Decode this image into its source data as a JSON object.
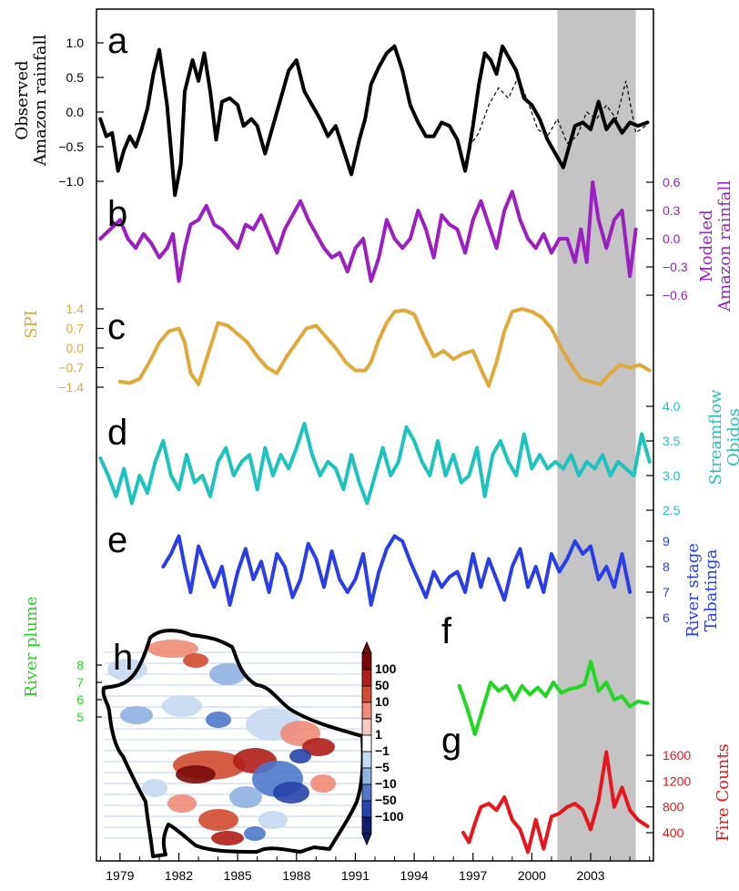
{
  "colors": {
    "a": "#000000",
    "b": "#9b1fc1",
    "c": "#e0a93a",
    "d": "#1ec3c0",
    "e": "#2a3ee6",
    "f": "#22d622",
    "g": "#e8161c",
    "shade": "#c4c4c4"
  },
  "x_axis": {
    "ticks": [
      "1979",
      "1982",
      "1985",
      "1988",
      "1991",
      "1994",
      "1997",
      "2000",
      "2003"
    ]
  },
  "chart_data": [
    {
      "panel": "a",
      "type": "line",
      "ylabel": [
        "Observed",
        "Amazon rainfall"
      ],
      "ticks": [
        "1.0",
        "0.5",
        "0.0",
        "−0.5",
        "−1.0"
      ],
      "x": [
        1978.0,
        1978.3,
        1978.6,
        1978.9,
        1979.2,
        1979.5,
        1979.8,
        1980.1,
        1980.4,
        1980.7,
        1981.0,
        1981.4,
        1981.8,
        1982.1,
        1982.3,
        1982.7,
        1983.0,
        1983.3,
        1983.6,
        1983.9,
        1984.2,
        1984.6,
        1985.0,
        1985.3,
        1985.7,
        1986.0,
        1986.4,
        1986.8,
        1987.2,
        1987.6,
        1988.0,
        1988.4,
        1988.8,
        1989.2,
        1989.6,
        1990.0,
        1990.4,
        1990.8,
        1991.2,
        1991.5,
        1991.8,
        1992.2,
        1992.6,
        1993.0,
        1993.4,
        1993.8,
        1994.2,
        1994.6,
        1995.0,
        1995.4,
        1995.8,
        1996.2,
        1996.6,
        1996.8,
        1997.0,
        1997.3,
        1997.6,
        1997.9,
        1998.2,
        1998.5,
        1998.9,
        1999.2,
        1999.6,
        2000.0,
        2000.4,
        2000.8,
        2001.2,
        2001.6,
        2001.9,
        2002.2,
        2002.6,
        2003.0,
        2003.4,
        2003.8,
        2004.2,
        2004.6,
        2005.0,
        2005.4,
        2005.9
      ],
      "values": [
        -0.1,
        -0.35,
        -0.3,
        -0.85,
        -0.55,
        -0.35,
        -0.5,
        -0.25,
        0.05,
        0.55,
        0.9,
        0.1,
        -1.2,
        -0.75,
        0.3,
        0.75,
        0.45,
        0.85,
        0.3,
        -0.4,
        0.15,
        0.2,
        0.1,
        -0.2,
        -0.1,
        -0.2,
        -0.6,
        -0.2,
        0.2,
        0.6,
        0.75,
        0.3,
        0.1,
        -0.1,
        -0.35,
        -0.2,
        -0.55,
        -0.9,
        -0.4,
        -0.1,
        0.4,
        0.65,
        0.85,
        0.95,
        0.6,
        0.1,
        -0.15,
        -0.35,
        -0.35,
        -0.15,
        -0.2,
        -0.4,
        -0.85,
        -0.55,
        -0.2,
        0.4,
        0.85,
        0.75,
        0.55,
        0.95,
        0.75,
        0.6,
        0.2,
        0.1,
        -0.1,
        -0.4,
        -0.6,
        -0.8,
        -0.5,
        -0.2,
        -0.15,
        -0.25,
        0.15,
        -0.25,
        -0.1,
        -0.3,
        -0.15,
        -0.2,
        -0.15
      ],
      "dashed_x": [
        1996.8,
        1997.3,
        1997.8,
        1998.3,
        1998.8,
        1999.3,
        1999.8,
        2000.3,
        2000.8,
        2001.3,
        2001.8,
        2002.3,
        2002.8,
        2003.3,
        2003.8,
        2004.3,
        2004.8,
        2005.3,
        2005.8
      ],
      "dashed_values": [
        -0.5,
        -0.3,
        0.1,
        0.35,
        0.2,
        0.5,
        0.15,
        -0.25,
        -0.35,
        -0.1,
        -0.45,
        -0.35,
        0.0,
        -0.1,
        0.1,
        -0.1,
        0.45,
        -0.3,
        -0.2
      ]
    },
    {
      "panel": "b",
      "type": "line",
      "ylabel": [
        "Modeled",
        "Amazon rainfall"
      ],
      "ticks": [
        "0.6",
        "0.3",
        "0.0",
        "−0.3",
        "−0.6"
      ],
      "x": [
        1978.0,
        1978.5,
        1979.0,
        1979.4,
        1979.8,
        1980.2,
        1980.6,
        1981.0,
        1981.4,
        1981.7,
        1982.0,
        1982.3,
        1982.6,
        1983.0,
        1983.4,
        1983.8,
        1984.2,
        1984.6,
        1985.0,
        1985.4,
        1985.8,
        1986.2,
        1986.6,
        1987.0,
        1987.4,
        1987.8,
        1988.2,
        1988.6,
        1989.0,
        1989.4,
        1989.8,
        1990.2,
        1990.6,
        1991.0,
        1991.4,
        1991.8,
        1992.2,
        1992.6,
        1993.0,
        1993.4,
        1993.8,
        1994.2,
        1994.6,
        1995.0,
        1995.4,
        1995.8,
        1996.2,
        1996.6,
        1997.0,
        1997.4,
        1997.8,
        1998.2,
        1998.6,
        1999.0,
        1999.4,
        1999.8,
        2000.2,
        2000.6,
        2001.0,
        2001.4,
        2001.8,
        2002.2,
        2002.5,
        2002.8,
        2003.1,
        2003.4,
        2003.8,
        2004.2,
        2004.6,
        2005.0,
        2005.3
      ],
      "values": [
        0.0,
        0.1,
        0.2,
        0.0,
        -0.1,
        0.05,
        -0.05,
        -0.2,
        -0.1,
        0.05,
        -0.45,
        -0.1,
        0.15,
        0.2,
        0.35,
        0.15,
        0.1,
        0.0,
        -0.1,
        0.15,
        0.1,
        0.25,
        0.05,
        -0.15,
        0.1,
        0.25,
        0.4,
        0.2,
        0.05,
        -0.1,
        -0.2,
        -0.15,
        -0.35,
        -0.1,
        0.0,
        -0.45,
        -0.2,
        0.2,
        0.0,
        -0.1,
        0.0,
        0.3,
        0.1,
        -0.2,
        0.25,
        0.15,
        0.1,
        -0.15,
        0.2,
        0.4,
        0.15,
        -0.1,
        0.3,
        0.5,
        0.2,
        0.0,
        -0.1,
        0.05,
        -0.15,
        0.0,
        0.0,
        -0.25,
        0.1,
        -0.25,
        0.6,
        0.2,
        -0.1,
        0.2,
        0.3,
        -0.4,
        0.1
      ]
    },
    {
      "panel": "c",
      "type": "line",
      "ylabel": [
        "SPI"
      ],
      "ticks": [
        "1.4",
        "0.7",
        "0.0",
        "−0.7",
        "−1.4"
      ],
      "x": [
        1979.0,
        1979.5,
        1980.0,
        1980.5,
        1981.0,
        1981.5,
        1982.0,
        1982.3,
        1982.6,
        1983.0,
        1983.5,
        1984.0,
        1984.5,
        1985.0,
        1985.5,
        1986.0,
        1986.5,
        1987.0,
        1987.5,
        1988.0,
        1988.5,
        1989.0,
        1989.5,
        1990.0,
        1990.5,
        1991.0,
        1991.5,
        1991.8,
        1992.2,
        1992.6,
        1993.0,
        1993.5,
        1994.0,
        1994.5,
        1995.0,
        1995.5,
        1996.0,
        1996.5,
        1997.0,
        1997.5,
        1997.8,
        1998.2,
        1998.6,
        1999.0,
        1999.5,
        2000.0,
        2000.5,
        2001.0,
        2001.5,
        2002.0,
        2002.5,
        2003.0,
        2003.5,
        2004.0,
        2004.5,
        2005.0,
        2005.5,
        2006.0
      ],
      "values": [
        -1.2,
        -1.25,
        -1.1,
        -0.5,
        0.2,
        0.6,
        0.7,
        0.2,
        -0.9,
        -1.3,
        -0.2,
        0.9,
        0.8,
        0.5,
        0.2,
        -0.3,
        -0.7,
        -0.9,
        -0.3,
        0.2,
        0.7,
        0.8,
        0.4,
        0.0,
        -0.5,
        -0.8,
        -0.8,
        -0.5,
        0.3,
        0.9,
        1.3,
        1.35,
        1.2,
        0.4,
        -0.3,
        -0.1,
        -0.4,
        -0.2,
        -0.1,
        -0.9,
        -1.35,
        -0.5,
        0.6,
        1.3,
        1.4,
        1.3,
        1.1,
        0.7,
        0.0,
        -0.6,
        -1.1,
        -1.2,
        -1.3,
        -0.9,
        -0.6,
        -0.7,
        -0.6,
        -0.8
      ]
    },
    {
      "panel": "d",
      "type": "line",
      "ylabel": [
        "Streamflow",
        "Obidos"
      ],
      "ticks": [
        "4.0",
        "3.5",
        "3.0",
        "2.5"
      ],
      "x": [
        1978.0,
        1978.4,
        1978.8,
        1979.2,
        1979.6,
        1980.0,
        1980.4,
        1980.8,
        1981.2,
        1981.6,
        1982.0,
        1982.4,
        1982.8,
        1983.2,
        1983.6,
        1984.0,
        1984.4,
        1984.8,
        1985.2,
        1985.6,
        1986.0,
        1986.4,
        1986.8,
        1987.2,
        1987.6,
        1988.0,
        1988.4,
        1988.8,
        1989.2,
        1989.6,
        1990.0,
        1990.4,
        1990.8,
        1991.2,
        1991.6,
        1992.0,
        1992.4,
        1992.8,
        1993.2,
        1993.6,
        1994.0,
        1994.4,
        1994.8,
        1995.2,
        1995.6,
        1996.0,
        1996.4,
        1996.8,
        1997.2,
        1997.6,
        1998.0,
        1998.4,
        1998.8,
        1999.2,
        1999.6,
        2000.0,
        2000.4,
        2000.8,
        2001.2,
        2001.6,
        2002.0,
        2002.4,
        2002.8,
        2003.2,
        2003.6,
        2004.0,
        2004.4,
        2004.8,
        2005.2,
        2005.6,
        2006.0
      ],
      "values": [
        3.25,
        3.0,
        2.7,
        3.1,
        2.6,
        3.0,
        2.75,
        3.2,
        3.5,
        3.0,
        2.8,
        3.3,
        2.9,
        3.0,
        2.7,
        3.2,
        3.4,
        3.0,
        3.2,
        3.3,
        2.8,
        3.4,
        3.0,
        3.3,
        3.1,
        3.4,
        3.75,
        3.3,
        3.0,
        3.2,
        3.1,
        2.8,
        3.3,
        2.9,
        2.6,
        3.0,
        3.4,
        3.0,
        3.2,
        3.7,
        3.5,
        3.2,
        3.0,
        3.5,
        3.0,
        3.3,
        2.9,
        3.0,
        3.4,
        2.7,
        3.3,
        3.5,
        3.2,
        3.0,
        3.6,
        3.1,
        3.3,
        3.1,
        3.2,
        3.1,
        3.3,
        3.0,
        3.2,
        3.1,
        3.3,
        3.0,
        3.2,
        3.1,
        3.0,
        3.6,
        3.2
      ]
    },
    {
      "panel": "e",
      "type": "line",
      "ylabel": [
        "River stage",
        "Tabatinga"
      ],
      "ticks": [
        "9",
        "8",
        "7",
        "6"
      ],
      "x": [
        1981.2,
        1981.6,
        1982.0,
        1982.3,
        1982.6,
        1983.0,
        1983.4,
        1983.8,
        1984.2,
        1984.6,
        1985.0,
        1985.4,
        1985.8,
        1986.2,
        1986.6,
        1987.0,
        1987.4,
        1987.8,
        1988.2,
        1988.6,
        1989.0,
        1989.4,
        1989.8,
        1990.2,
        1990.6,
        1991.0,
        1991.4,
        1991.8,
        1992.2,
        1992.6,
        1993.0,
        1993.4,
        1993.8,
        1994.2,
        1994.6,
        1995.0,
        1995.4,
        1995.8,
        1996.2,
        1996.6,
        1997.0,
        1997.4,
        1997.8,
        1998.2,
        1998.6,
        1999.0,
        1999.4,
        1999.8,
        2000.2,
        2000.6,
        2001.0,
        2001.4,
        2001.8,
        2002.2,
        2002.6,
        2003.0,
        2003.4,
        2003.8,
        2004.2,
        2004.6,
        2005.0
      ],
      "values": [
        8.0,
        8.5,
        9.2,
        8.0,
        7.0,
        8.8,
        8.0,
        7.2,
        8.0,
        6.5,
        7.8,
        8.7,
        7.5,
        8.2,
        7.0,
        8.5,
        8.0,
        6.8,
        7.5,
        8.9,
        8.3,
        7.2,
        8.6,
        7.5,
        7.0,
        7.5,
        8.5,
        6.5,
        7.8,
        8.7,
        9.2,
        9.0,
        8.2,
        7.5,
        6.8,
        7.8,
        7.2,
        7.6,
        7.8,
        7.0,
        8.5,
        7.2,
        8.3,
        7.5,
        6.7,
        8.0,
        8.7,
        7.2,
        8.0,
        7.0,
        8.5,
        7.8,
        8.3,
        9.0,
        8.5,
        8.8,
        7.5,
        8.0,
        7.2,
        8.5,
        7.0
      ]
    },
    {
      "panel": "f",
      "type": "line",
      "ylabel": [
        "River plume"
      ],
      "ticks": [
        "8",
        "7",
        "6",
        "5"
      ],
      "x": [
        1996.3,
        1996.7,
        1997.1,
        1997.5,
        1997.9,
        1998.3,
        1998.7,
        1999.1,
        1999.5,
        1999.9,
        2000.3,
        2000.7,
        2001.1,
        2001.5,
        2001.9,
        2002.3,
        2002.7,
        2003.0,
        2003.4,
        2003.8,
        2004.2,
        2004.6,
        2005.0,
        2005.4,
        2005.9
      ],
      "values": [
        6.8,
        5.5,
        4.0,
        5.5,
        7.0,
        6.5,
        6.8,
        6.0,
        6.8,
        6.3,
        6.7,
        6.2,
        7.0,
        6.4,
        6.6,
        6.7,
        6.9,
        8.2,
        6.5,
        7.0,
        6.0,
        6.2,
        5.6,
        5.9,
        5.8
      ]
    },
    {
      "panel": "g",
      "type": "line",
      "ylabel": [
        "Fire Counts"
      ],
      "ticks": [
        "1600",
        "1200",
        "800",
        "400"
      ],
      "x": [
        1996.5,
        1996.8,
        1997.1,
        1997.4,
        1997.8,
        1998.2,
        1998.6,
        1999.0,
        1999.4,
        1999.8,
        2000.2,
        2000.6,
        2001.0,
        2001.4,
        2001.8,
        2002.2,
        2002.6,
        2003.0,
        2003.4,
        2003.8,
        2004.2,
        2004.6,
        2005.0,
        2005.4,
        2005.9
      ],
      "values": [
        400,
        250,
        550,
        800,
        850,
        750,
        950,
        600,
        450,
        100,
        600,
        150,
        650,
        700,
        800,
        850,
        750,
        450,
        900,
        1650,
        800,
        1100,
        750,
        600,
        500
      ]
    }
  ],
  "map_inset": {
    "label": "h",
    "colorbar_ticks": [
      "100",
      "50",
      "10",
      "5",
      "1",
      "−1",
      "−5",
      "−10",
      "−50",
      "−100"
    ],
    "colorbar_colors": [
      "#7a0a0a",
      "#b01f18",
      "#d24a30",
      "#ef8a78",
      "#f7c9c0",
      "#ffffff",
      "#c5d9f2",
      "#8fb3e2",
      "#4f78cc",
      "#2744a8",
      "#101d6e"
    ]
  }
}
